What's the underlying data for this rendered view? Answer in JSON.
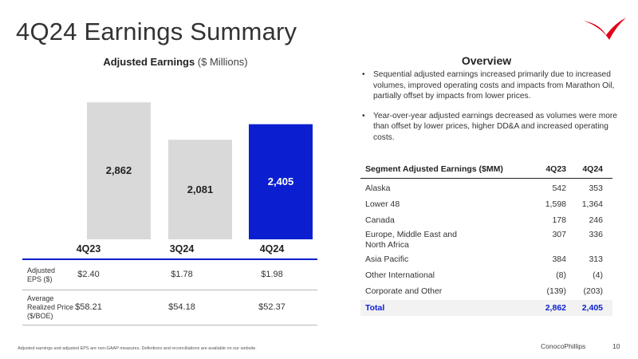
{
  "slide": {
    "title": "4Q24 Earnings Summary",
    "page_number": "10",
    "brand": "ConocoPhillips",
    "footnote": "Adjusted earnings and adjusted EPS are non-GAAP measures. Definitions and reconciliations are available on our website.",
    "logo_color": "#e2001a"
  },
  "chart_heading": {
    "bold": "Adjusted Earnings",
    "normal": " ($ Millions)"
  },
  "chart_data": {
    "type": "bar",
    "title": "Adjusted Earnings ($ Millions)",
    "categories": [
      "4Q23",
      "3Q24",
      "4Q24"
    ],
    "values": [
      2862,
      2081,
      2405
    ],
    "value_labels": [
      "2,862",
      "2,081",
      "2,405"
    ],
    "colors": [
      "#d9d9d9",
      "#d9d9d9",
      "#0b1fd1"
    ],
    "ylim": [
      0,
      3500
    ]
  },
  "metrics": [
    {
      "label": "Adjusted EPS ($)",
      "values": [
        "$2.40",
        "$1.78",
        "$1.98"
      ]
    },
    {
      "label": "Average Realized Price ($/BOE)",
      "values": [
        "$58.21",
        "$54.18",
        "$52.37"
      ]
    }
  ],
  "overview": {
    "heading": "Overview",
    "bullets": [
      "Sequential adjusted earnings increased primarily due to increased volumes, improved operating costs and impacts from Marathon Oil, partially offset by impacts from lower prices.",
      "Year-over-year adjusted earnings decreased as volumes were more than offset by lower prices, higher DD&A and increased operating costs."
    ]
  },
  "segment_table": {
    "headers": [
      "Segment Adjusted Earnings ($MM)",
      "4Q23",
      "4Q24"
    ],
    "rows": [
      [
        "Alaska",
        "542",
        "353"
      ],
      [
        "Lower 48",
        "1,598",
        "1,364"
      ],
      [
        "Canada",
        "178",
        "246"
      ],
      [
        "Europe, Middle East and North Africa",
        "307",
        "336"
      ],
      [
        "Asia Pacific",
        "384",
        "313"
      ],
      [
        "Other International",
        "(8)",
        "(4)"
      ],
      [
        "Corporate and Other",
        "(139)",
        "(203)"
      ]
    ],
    "total": [
      "Total",
      "2,862",
      "2,405"
    ]
  }
}
